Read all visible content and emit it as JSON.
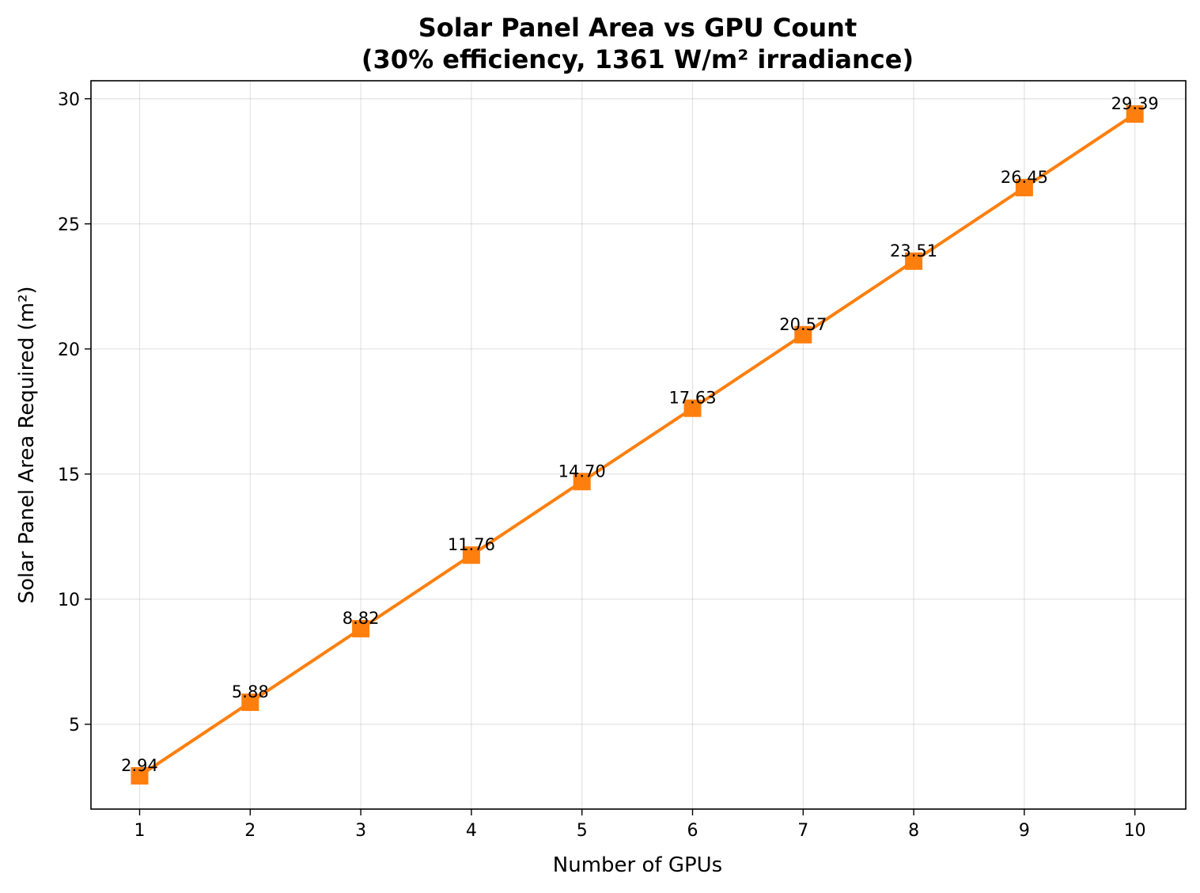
{
  "chart_data": {
    "type": "line",
    "title": "Solar Panel Area vs GPU Count",
    "subtitle": "(30% efficiency, 1361 W/m² irradiance)",
    "xlabel": "Number of GPUs",
    "ylabel": "Solar Panel Area Required (m²)",
    "x": [
      1,
      2,
      3,
      4,
      5,
      6,
      7,
      8,
      9,
      10
    ],
    "series": [
      {
        "values": [
          2.94,
          5.88,
          8.82,
          11.76,
          14.7,
          17.63,
          20.57,
          23.51,
          26.45,
          29.39
        ],
        "labels": [
          "2.94",
          "5.88",
          "8.82",
          "11.76",
          "14.70",
          "17.63",
          "20.57",
          "23.51",
          "26.45",
          "29.39"
        ],
        "color": "#ff7f0e",
        "marker": "square"
      }
    ],
    "xticks": [
      "1",
      "2",
      "3",
      "4",
      "5",
      "6",
      "7",
      "8",
      "9",
      "10"
    ],
    "yticks": [
      "5",
      "10",
      "15",
      "20",
      "25",
      "30"
    ],
    "xlim": [
      0.56,
      10.46
    ],
    "ylim": [
      1.61,
      30.72
    ],
    "grid": true,
    "legend": "none"
  }
}
